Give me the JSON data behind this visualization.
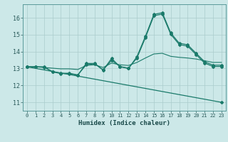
{
  "title": "",
  "xlabel": "Humidex (Indice chaleur)",
  "ylabel": "",
  "background_color": "#cce8e8",
  "line_color": "#1a7a6a",
  "grid_color": "#aacccc",
  "xlim": [
    -0.5,
    23.5
  ],
  "ylim": [
    10.5,
    16.8
  ],
  "xticks": [
    0,
    1,
    2,
    3,
    4,
    5,
    6,
    7,
    8,
    9,
    10,
    11,
    12,
    13,
    14,
    15,
    16,
    17,
    18,
    19,
    20,
    21,
    22,
    23
  ],
  "yticks": [
    11,
    12,
    13,
    14,
    15,
    16
  ],
  "series": [
    {
      "x": [
        0,
        1,
        2,
        3,
        4,
        5,
        6,
        7,
        8,
        9,
        10,
        11,
        12,
        13,
        14,
        15,
        16,
        17,
        18,
        19,
        20,
        21,
        22,
        23
      ],
      "y": [
        13.1,
        13.1,
        13.1,
        12.8,
        12.7,
        12.7,
        12.6,
        13.3,
        13.3,
        12.9,
        13.6,
        13.1,
        13.0,
        13.7,
        14.9,
        16.2,
        16.3,
        15.1,
        14.5,
        14.4,
        13.9,
        13.4,
        13.2,
        13.2
      ],
      "style": "-",
      "marker": "D",
      "markersize": 2.0,
      "linewidth": 0.9
    },
    {
      "x": [
        0,
        1,
        2,
        3,
        4,
        5,
        6,
        7,
        8,
        9,
        10,
        11,
        12,
        13,
        14,
        15,
        16,
        17,
        18,
        19,
        20,
        21,
        22,
        23
      ],
      "y": [
        13.1,
        13.1,
        13.08,
        12.82,
        12.72,
        12.72,
        12.62,
        13.22,
        13.28,
        12.92,
        13.48,
        13.12,
        13.02,
        13.62,
        14.82,
        16.12,
        16.22,
        15.02,
        14.42,
        14.32,
        13.82,
        13.32,
        13.12,
        13.12
      ],
      "style": "-",
      "marker": "D",
      "markersize": 2.0,
      "linewidth": 0.9
    },
    {
      "x": [
        0,
        1,
        2,
        3,
        4,
        5,
        6,
        7,
        8,
        9,
        10,
        11,
        12,
        13,
        14,
        15,
        16,
        17,
        18,
        19,
        20,
        21,
        22,
        23
      ],
      "y": [
        13.1,
        13.1,
        13.06,
        13.02,
        12.98,
        12.98,
        12.94,
        13.18,
        13.22,
        13.06,
        13.32,
        13.22,
        13.18,
        13.36,
        13.62,
        13.86,
        13.9,
        13.72,
        13.66,
        13.62,
        13.56,
        13.46,
        13.36,
        13.36
      ],
      "style": "-",
      "marker": null,
      "markersize": 0,
      "linewidth": 0.8
    },
    {
      "x": [
        0,
        23
      ],
      "y": [
        13.1,
        11.0
      ],
      "style": "-",
      "marker": "D",
      "markersize": 2.0,
      "linewidth": 0.9
    }
  ]
}
